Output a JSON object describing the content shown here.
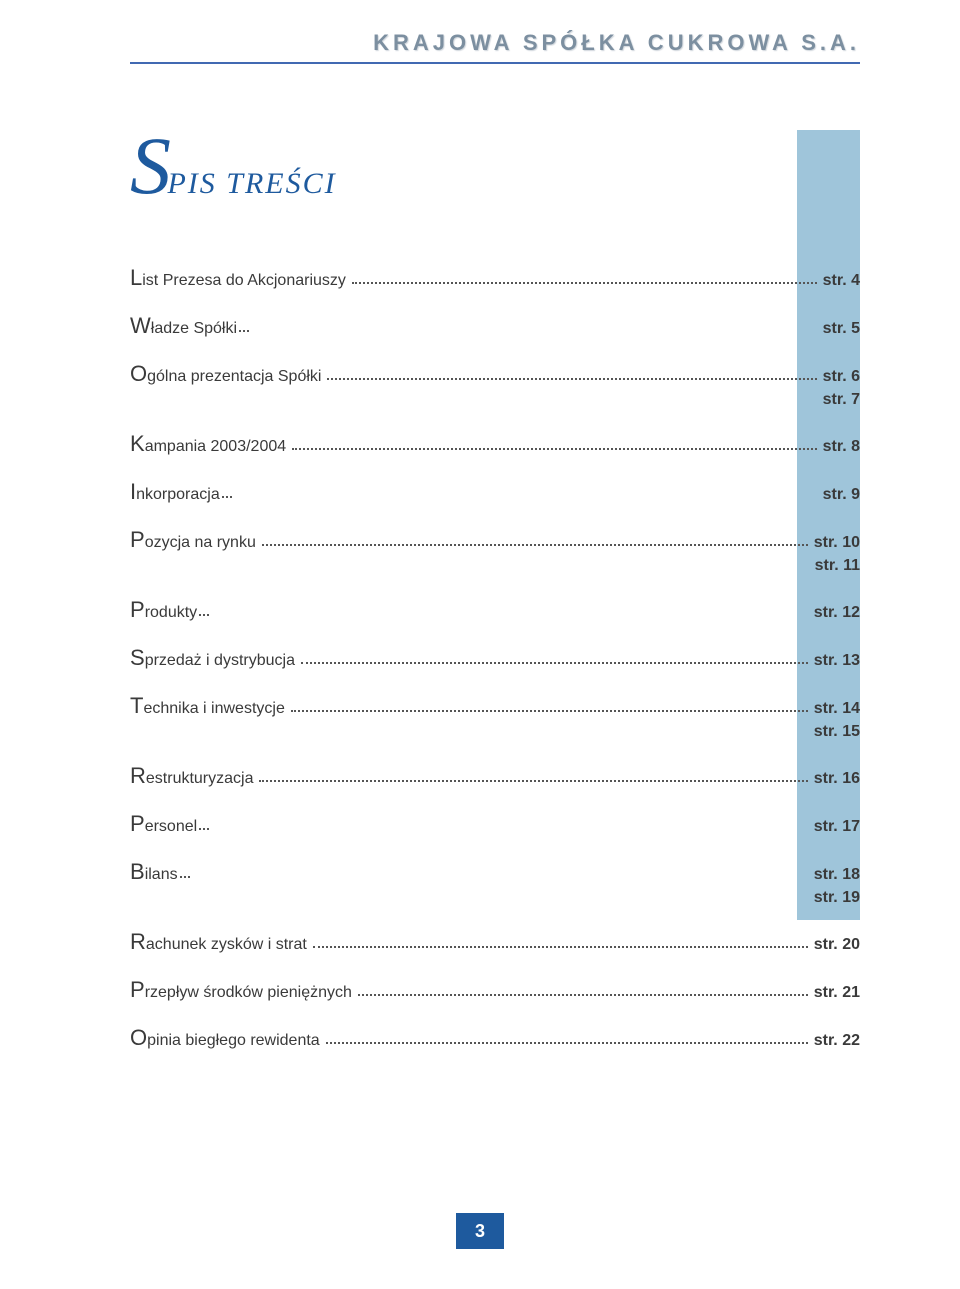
{
  "header": {
    "company_name": "KRAJOWA SPÓŁKA CUKROWA S.A."
  },
  "title": {
    "cap": "S",
    "rest": "PIS TREŚCI"
  },
  "colors": {
    "accent": "#1e5a9e",
    "sidebar": "#9fc5da",
    "header_text": "#7c8fa0",
    "text": "#3a3a3a"
  },
  "toc": [
    {
      "cap": "L",
      "rest": "ist Prezesa do Akcjonariuszy",
      "pages": [
        "str. 4"
      ],
      "dotted": true
    },
    {
      "cap": "W",
      "rest": "ładze Spółki",
      "pages": [
        "str. 5"
      ],
      "dotted": false
    },
    {
      "cap": "O",
      "rest": "gólna prezentacja Spółki",
      "pages": [
        "str. 6",
        "str. 7"
      ],
      "dotted": true
    },
    {
      "cap": "K",
      "rest": "ampania 2003/2004",
      "pages": [
        "str. 8"
      ],
      "dotted": true
    },
    {
      "cap": "I",
      "rest": "nkorporacja",
      "pages": [
        "str. 9"
      ],
      "dotted": false
    },
    {
      "cap": "P",
      "rest": "ozycja na rynku",
      "pages": [
        "str. 10",
        "str. 11"
      ],
      "dotted": true
    },
    {
      "cap": "P",
      "rest": "rodukty",
      "pages": [
        "str. 12"
      ],
      "dotted": false
    },
    {
      "cap": "S",
      "rest": "przedaż i dystrybucja",
      "pages": [
        "str. 13"
      ],
      "dotted": true
    },
    {
      "cap": "T",
      "rest": "echnika i inwestycje",
      "pages": [
        "str. 14",
        "str. 15"
      ],
      "dotted": true
    },
    {
      "cap": "R",
      "rest": "estrukturyzacja",
      "pages": [
        "str. 16"
      ],
      "dotted": true
    },
    {
      "cap": "P",
      "rest": "ersonel",
      "pages": [
        "str. 17"
      ],
      "dotted": false
    },
    {
      "cap": "B",
      "rest": "ilans",
      "pages": [
        "str. 18",
        "str. 19"
      ],
      "dotted": false
    },
    {
      "cap": "R",
      "rest": "achunek zysków i strat",
      "pages": [
        "str. 20"
      ],
      "dotted": true
    },
    {
      "cap": "P",
      "rest": "rzepływ środków pieniężnych",
      "pages": [
        "str. 21"
      ],
      "dotted": true
    },
    {
      "cap": "O",
      "rest": "pinia biegłego rewidenta",
      "pages": [
        "str. 22"
      ],
      "dotted": true
    }
  ],
  "page_number": "3"
}
